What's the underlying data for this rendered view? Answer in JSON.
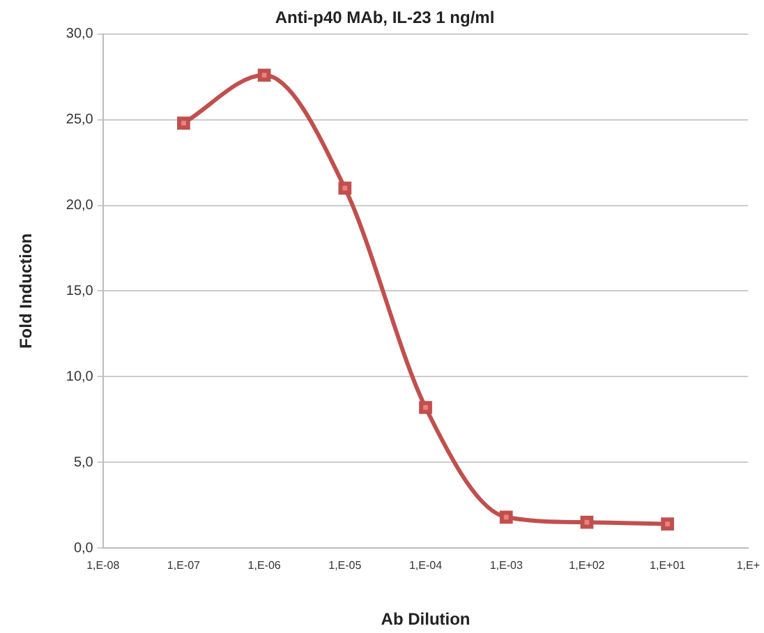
{
  "chart_data": {
    "type": "line",
    "title": "Anti-p40 MAb, IL-23 1 ng/ml",
    "xlabel": "Ab Dilution",
    "ylabel": "Fold Induction",
    "categories": [
      "1,E-08",
      "1,E-07",
      "1,E-06",
      "1,E-05",
      "1,E-04",
      "1,E-03",
      "1,E+02",
      "1,E+01",
      "1,E+"
    ],
    "series": [
      {
        "color": "#c0504d",
        "values": [
          null,
          24.8,
          27.6,
          21.0,
          8.2,
          1.8,
          1.5,
          1.4,
          null
        ]
      }
    ],
    "ylim": [
      0,
      30
    ],
    "yticks": [
      {
        "value": 0,
        "label": "0,0"
      },
      {
        "value": 5,
        "label": "5,0"
      },
      {
        "value": 10,
        "label": "10,0"
      },
      {
        "value": 15,
        "label": "15,0"
      },
      {
        "value": 20,
        "label": "20,0"
      },
      {
        "value": 25,
        "label": "25,0"
      },
      {
        "value": 30,
        "label": "30,0"
      }
    ],
    "grid": "y",
    "legend": false,
    "marker": "square",
    "line_style": "solid"
  }
}
